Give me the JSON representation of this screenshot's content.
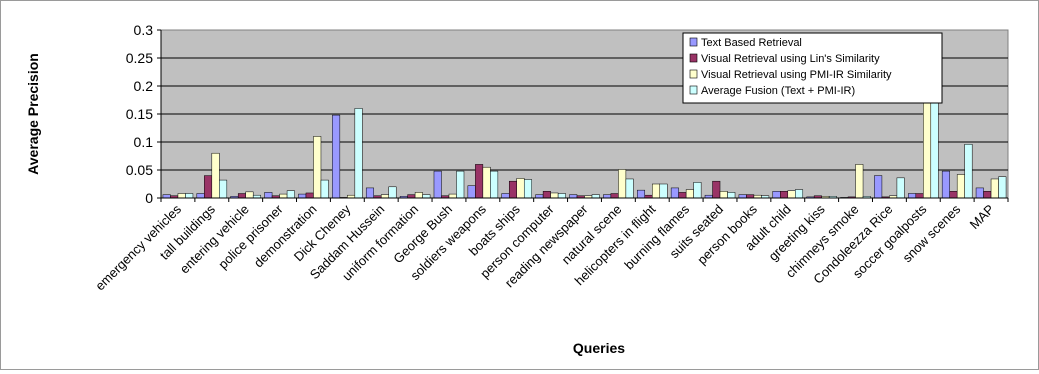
{
  "chart_data": {
    "type": "bar",
    "title": "",
    "xlabel": "Queries",
    "ylabel": "Average Precision",
    "ylim": [
      0,
      0.3
    ],
    "yticks": [
      "0",
      "0.05",
      "0.1",
      "0.15",
      "0.2",
      "0.25",
      "0.3"
    ],
    "grid": true,
    "legend_position": "top-right",
    "categories": [
      "emergency vehicles",
      "tall buildings",
      "entering vehicle",
      "police prisoner",
      "demonstration",
      "Dick Cheney",
      "Saddam Hussein",
      "uniform formation",
      "George Bush",
      "soldiers weapons",
      "boats ships",
      "person computer",
      "reading newspaper",
      "natural scene",
      "helicopters in flight",
      "burning flames",
      "suits seated",
      "person books",
      "adult child",
      "greeting kiss",
      "chimneys smoke",
      "Condoleezza Rice",
      "soccer goalposts",
      "snow scenes",
      "MAP"
    ],
    "series": [
      {
        "name": "Text Based Retrieval",
        "color": "#9999ff",
        "values": [
          0.006,
          0.008,
          0.003,
          0.01,
          0.007,
          0.148,
          0.018,
          0.003,
          0.048,
          0.022,
          0.008,
          0.006,
          0.006,
          0.006,
          0.014,
          0.018,
          0.005,
          0.006,
          0.012,
          0.002,
          0.001,
          0.04,
          0.008,
          0.048,
          0.018
        ]
      },
      {
        "name": "Visual Retrieval using Lin's Similarity",
        "color": "#993366",
        "values": [
          0.004,
          0.04,
          0.008,
          0.004,
          0.009,
          0.001,
          0.004,
          0.006,
          0.004,
          0.06,
          0.03,
          0.012,
          0.004,
          0.008,
          0.005,
          0.01,
          0.03,
          0.006,
          0.012,
          0.004,
          0.002,
          0.002,
          0.008,
          0.012,
          0.012
        ]
      },
      {
        "name": "Visual Retrieval using PMI-IR Similarity",
        "color": "#ffffcc",
        "values": [
          0.008,
          0.08,
          0.011,
          0.007,
          0.11,
          0.005,
          0.006,
          0.01,
          0.007,
          0.055,
          0.035,
          0.009,
          0.004,
          0.051,
          0.025,
          0.015,
          0.012,
          0.005,
          0.013,
          0.003,
          0.06,
          0.004,
          0.256,
          0.042,
          0.034
        ]
      },
      {
        "name": "Average Fusion (Text + PMI-IR)",
        "color": "#ccffff",
        "values": [
          0.008,
          0.032,
          0.005,
          0.013,
          0.032,
          0.16,
          0.02,
          0.006,
          0.048,
          0.048,
          0.033,
          0.008,
          0.006,
          0.034,
          0.025,
          0.028,
          0.01,
          0.004,
          0.015,
          0.003,
          0.003,
          0.036,
          0.22,
          0.096,
          0.038
        ]
      }
    ]
  }
}
